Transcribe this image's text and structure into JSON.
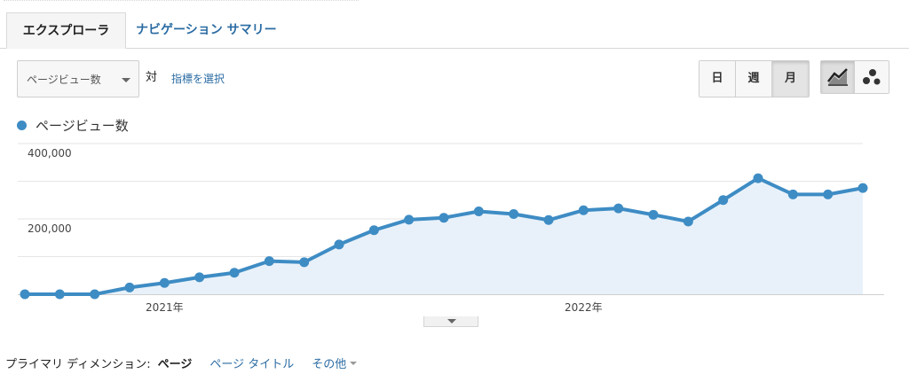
{
  "tabs": [
    {
      "label": "エクスプローラ",
      "active": true
    },
    {
      "label": "ナビゲーション サマリー",
      "active": false
    }
  ],
  "controls": {
    "metric_select": "ページビュー数",
    "vs_text": "対",
    "select_metric_link": "指標を選択",
    "period_buttons": [
      {
        "label": "日",
        "active": false
      },
      {
        "label": "週",
        "active": false
      },
      {
        "label": "月",
        "active": true
      }
    ],
    "view_buttons": [
      {
        "icon": "line-chart-icon",
        "active": true
      },
      {
        "icon": "motion-chart-icon",
        "active": false
      }
    ]
  },
  "legend": {
    "label": "ページビュー数",
    "color": "#3e8cc4"
  },
  "colors": {
    "accent": "#3e8cc4",
    "fill": "#e8f1fa",
    "link": "#2b6ca3"
  },
  "chart_data": {
    "type": "line",
    "series": [
      {
        "name": "ページビュー数",
        "values": [
          0,
          0,
          0,
          18000,
          30000,
          45000,
          57000,
          88000,
          85000,
          132000,
          170000,
          198000,
          203000,
          220000,
          213000,
          197000,
          223000,
          228000,
          211000,
          193000,
          250000,
          308000,
          265000,
          265000,
          282000
        ]
      }
    ],
    "y_ticks": [
      {
        "value": 400000,
        "label": "400,000"
      },
      {
        "value": 200000,
        "label": "200,000"
      }
    ],
    "x_ticks": [
      {
        "index": 4,
        "label": "2021年"
      },
      {
        "index": 16,
        "label": "2022年"
      }
    ],
    "ylim": [
      0,
      400000
    ],
    "grid": true,
    "fill_area": true
  },
  "dimensions": {
    "label": "プライマリ ディメンション:",
    "active": "ページ",
    "links": [
      "ページ タイトル"
    ],
    "more": "その他"
  }
}
